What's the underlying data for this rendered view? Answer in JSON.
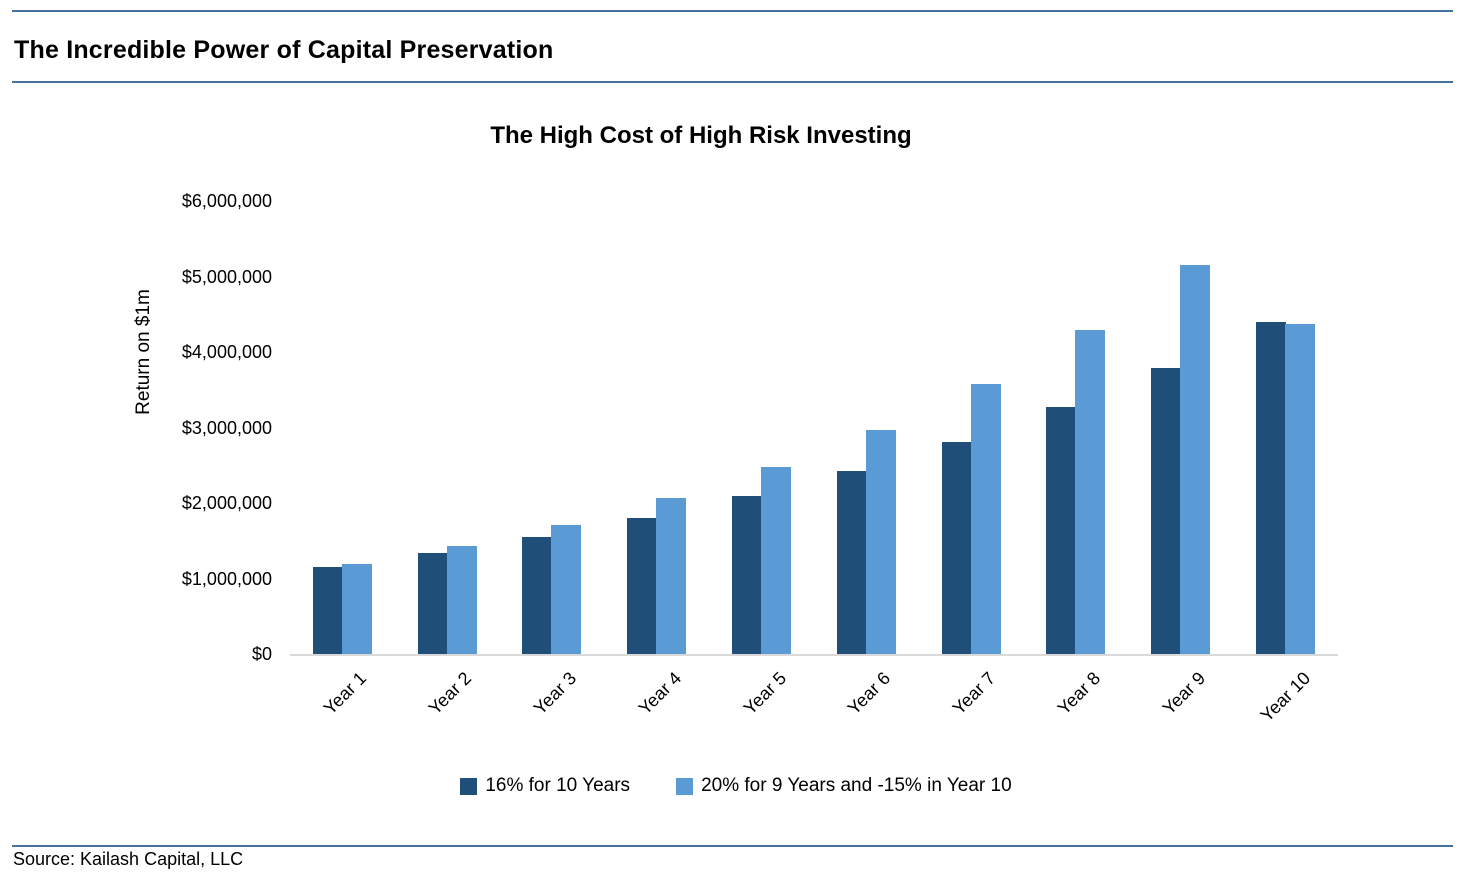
{
  "page": {
    "header_title": "The Incredible Power of Capital Preservation",
    "source_text": "Source: Kailash Capital, LLC"
  },
  "chart_data": {
    "type": "bar",
    "title": "The High Cost of High Risk Investing",
    "xlabel": "",
    "ylabel": "Return on $1m",
    "categories": [
      "Year 1",
      "Year 2",
      "Year 3",
      "Year 4",
      "Year 5",
      "Year 6",
      "Year 7",
      "Year 8",
      "Year 9",
      "Year 10"
    ],
    "series": [
      {
        "name": "16% for 10 Years",
        "color": "#1F4E79",
        "values": [
          1160000,
          1345600,
          1560896,
          1810639,
          2100342,
          2436396,
          2826220,
          3278415,
          3802961,
          4411435
        ]
      },
      {
        "name": "20% for 9 Years and -15% in Year 10",
        "color": "#5B9BD5",
        "values": [
          1200000,
          1440000,
          1728000,
          2073600,
          2488320,
          2985984,
          3583181,
          4299817,
          5159780,
          4385813
        ]
      }
    ],
    "ylim": [
      0,
      6000000
    ],
    "ytick_interval": 1000000,
    "ytick_labels": [
      "$0",
      "$1,000,000",
      "$2,000,000",
      "$3,000,000",
      "$4,000,000",
      "$5,000,000",
      "$6,000,000"
    ],
    "grid": false,
    "legend_position": "bottom"
  },
  "colors": {
    "rule_line": "#44719E",
    "axis_baseline": "#D9D9D9",
    "series1": "#1F4E79",
    "series2": "#5B9BD5",
    "text": "#000000"
  }
}
